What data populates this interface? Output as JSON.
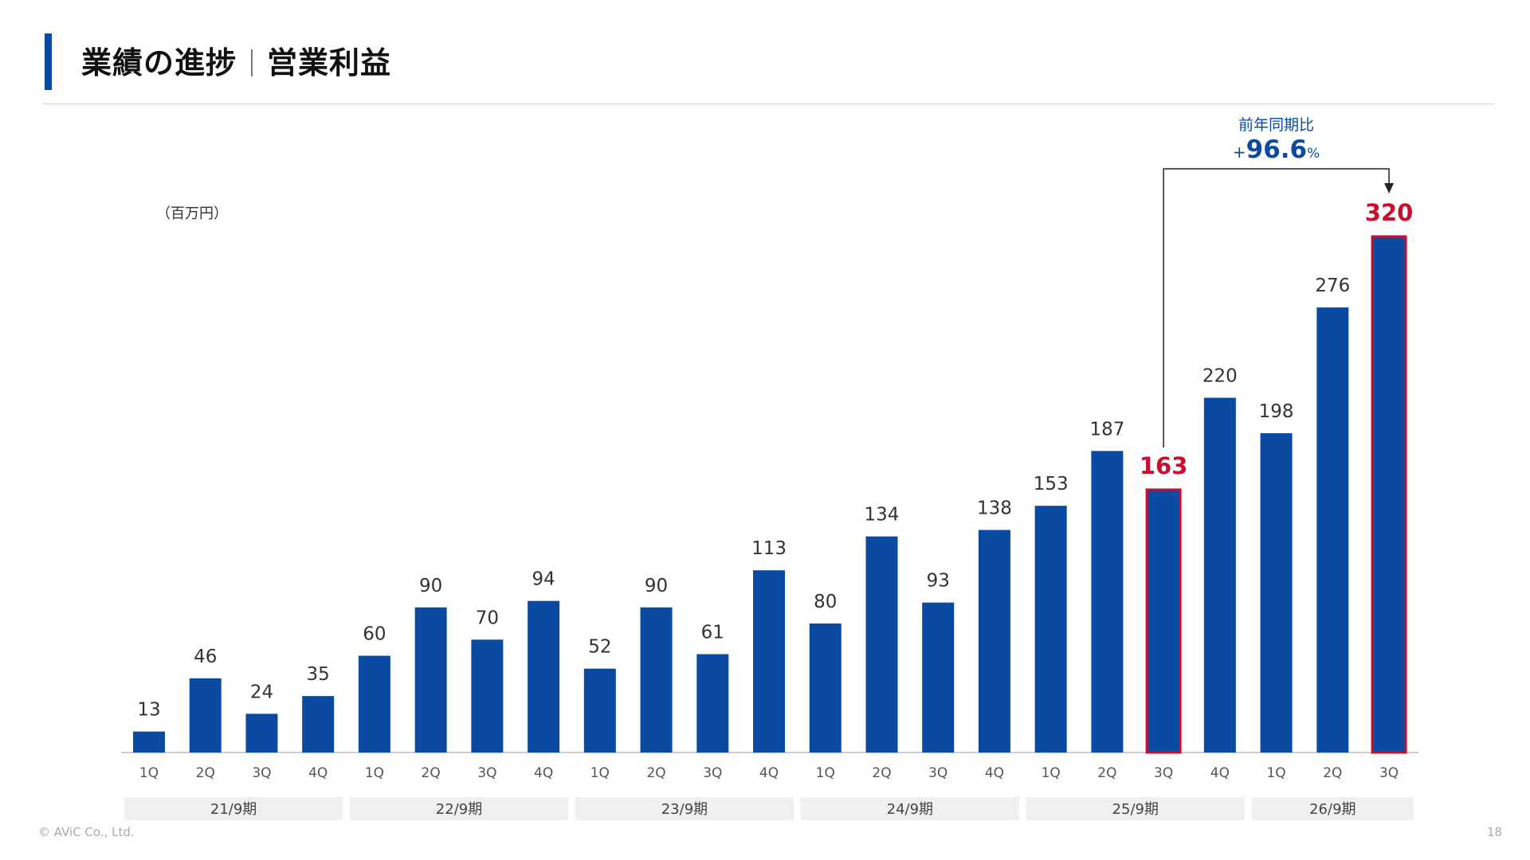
{
  "header": {
    "title_main": "業績の進捗",
    "title_sub": "営業利益"
  },
  "unit_label": "（百万円）",
  "colors": {
    "bar": "#0b4aa2",
    "highlight": "#c8102e",
    "accent": "#0b4aa2"
  },
  "comparison": {
    "label": "前年同期比",
    "sign": "+",
    "value": "96.6",
    "unit": "%",
    "from_index": 18,
    "to_index": 22
  },
  "chart_data": {
    "type": "bar",
    "categories": [
      "1Q",
      "2Q",
      "3Q",
      "4Q",
      "1Q",
      "2Q",
      "3Q",
      "4Q",
      "1Q",
      "2Q",
      "3Q",
      "4Q",
      "1Q",
      "2Q",
      "3Q",
      "4Q",
      "1Q",
      "2Q",
      "3Q",
      "4Q",
      "1Q",
      "2Q",
      "3Q"
    ],
    "values": [
      13,
      46,
      24,
      35,
      60,
      90,
      70,
      94,
      52,
      90,
      61,
      113,
      80,
      134,
      93,
      138,
      153,
      187,
      163,
      220,
      198,
      276,
      320
    ],
    "labels": [
      "13",
      "46",
      "24",
      "35",
      "60",
      "90",
      "70",
      "94",
      "52",
      "90",
      "61",
      "113",
      "80",
      "134",
      "93",
      "138",
      "153",
      "187",
      "163",
      "220",
      "198",
      "276",
      "320"
    ],
    "highlight_indices": [
      18,
      22
    ],
    "periods": [
      {
        "label": "21/9期",
        "start": 0,
        "end": 3
      },
      {
        "label": "22/9期",
        "start": 4,
        "end": 7
      },
      {
        "label": "23/9期",
        "start": 8,
        "end": 11
      },
      {
        "label": "24/9期",
        "start": 12,
        "end": 15
      },
      {
        "label": "25/9期",
        "start": 16,
        "end": 19
      },
      {
        "label": "26/9期",
        "start": 20,
        "end": 22
      }
    ],
    "ylim": [
      0,
      340
    ],
    "grid": false,
    "legend": "none"
  },
  "footer": {
    "copyright": "© AViC Co., Ltd.",
    "page": "18"
  }
}
